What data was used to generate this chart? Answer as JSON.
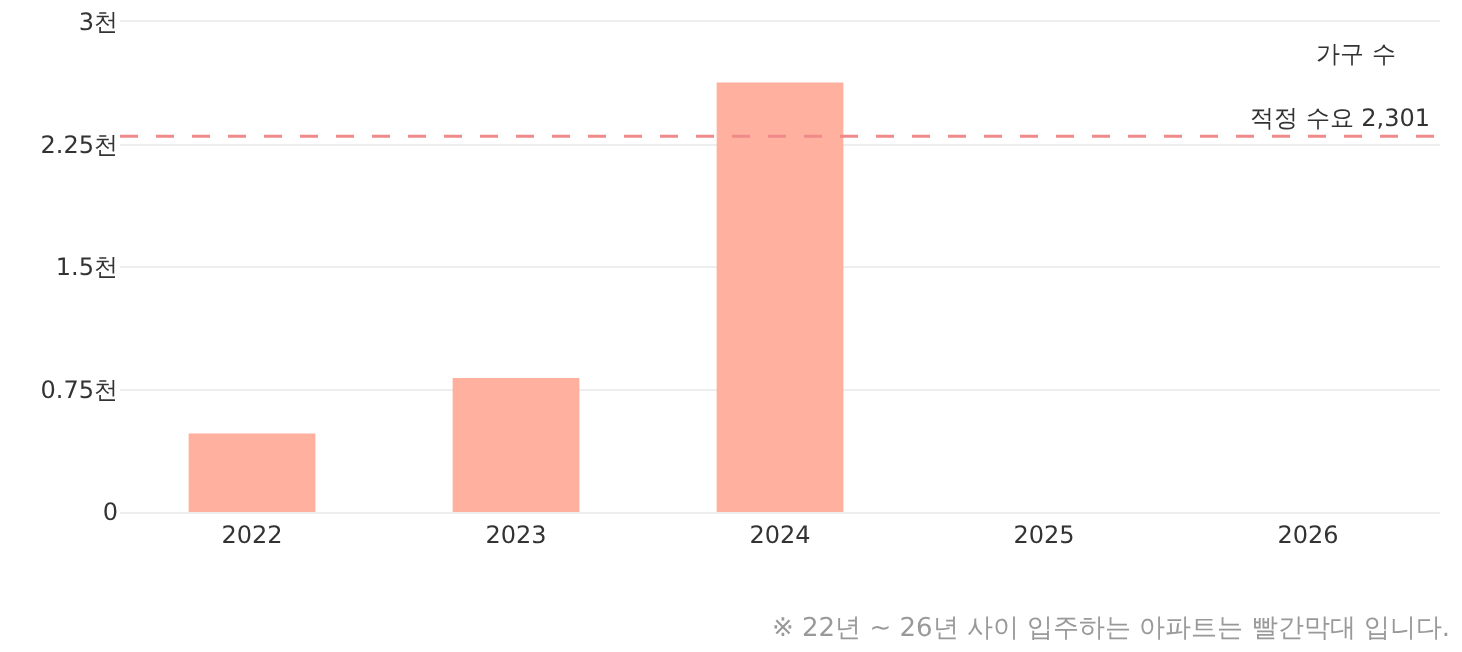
{
  "chart_data": {
    "type": "bar",
    "ylabel": "가구 수",
    "categories": [
      "2022",
      "2023",
      "2024",
      "2025",
      "2026"
    ],
    "values": [
      0.48,
      0.82,
      2.63,
      null,
      null
    ],
    "color": "#ffb09f",
    "ylim": [
      0,
      3
    ],
    "yticks": [
      0,
      {
        "value": 0.75,
        "label": "0.75천"
      },
      {
        "value": 1.5,
        "label": "1.5천"
      },
      {
        "value": 2.25,
        "label": "2.25천"
      },
      {
        "value": 3,
        "label": "3천"
      }
    ],
    "grid": "y",
    "ref_lines": [
      {
        "axis": "y",
        "value": 2.301,
        "label": "적정 수요 2,301",
        "color": "#f08a8a",
        "line_style": "dashed"
      }
    ],
    "annotations": [
      "※ 22년 ~ 26년 사이 입주하는 아파트는 빨간막대 입니다."
    ]
  }
}
